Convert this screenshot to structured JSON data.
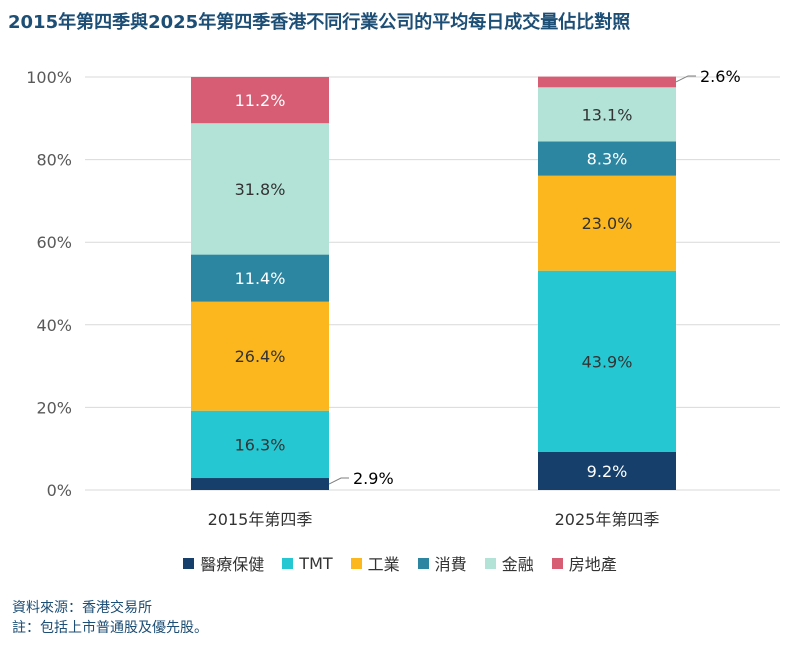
{
  "title": "2015年第四季與2025年第四季香港不同行業公司的平均每日成交量佔比對照",
  "chart_data": {
    "type": "bar",
    "stacked": true,
    "categories": [
      "2015年第四季",
      "2025年第四季"
    ],
    "ylim": [
      0,
      100
    ],
    "yticks": [
      "0%",
      "20%",
      "40%",
      "60%",
      "80%",
      "100%"
    ],
    "grid": true,
    "legend_position": "bottom",
    "series": [
      {
        "name": "醫療保健",
        "color": "#16406b",
        "values": [
          2.9,
          9.2
        ],
        "labels": [
          "2.9%",
          "9.2%"
        ]
      },
      {
        "name": "TMT",
        "color": "#25c8d2",
        "values": [
          16.3,
          43.9
        ],
        "labels": [
          "16.3%",
          "43.9%"
        ]
      },
      {
        "name": "工業",
        "color": "#fbb71d",
        "values": [
          26.4,
          23.0
        ],
        "labels": [
          "26.4%",
          "23.0%"
        ]
      },
      {
        "name": "消費",
        "color": "#2c86a1",
        "values": [
          11.4,
          8.3
        ],
        "labels": [
          "11.4%",
          "8.3%"
        ]
      },
      {
        "name": "金融",
        "color": "#b3e3d7",
        "values": [
          31.8,
          13.1
        ],
        "labels": [
          "31.8%",
          "13.1%"
        ]
      },
      {
        "name": "房地產",
        "color": "#d65d74",
        "values": [
          11.2,
          2.6
        ],
        "labels": [
          "11.2%",
          "2.6%"
        ]
      }
    ]
  },
  "footnotes": {
    "source": "資料來源：香港交易所",
    "note": "註：包括上市普通股及優先股。"
  }
}
